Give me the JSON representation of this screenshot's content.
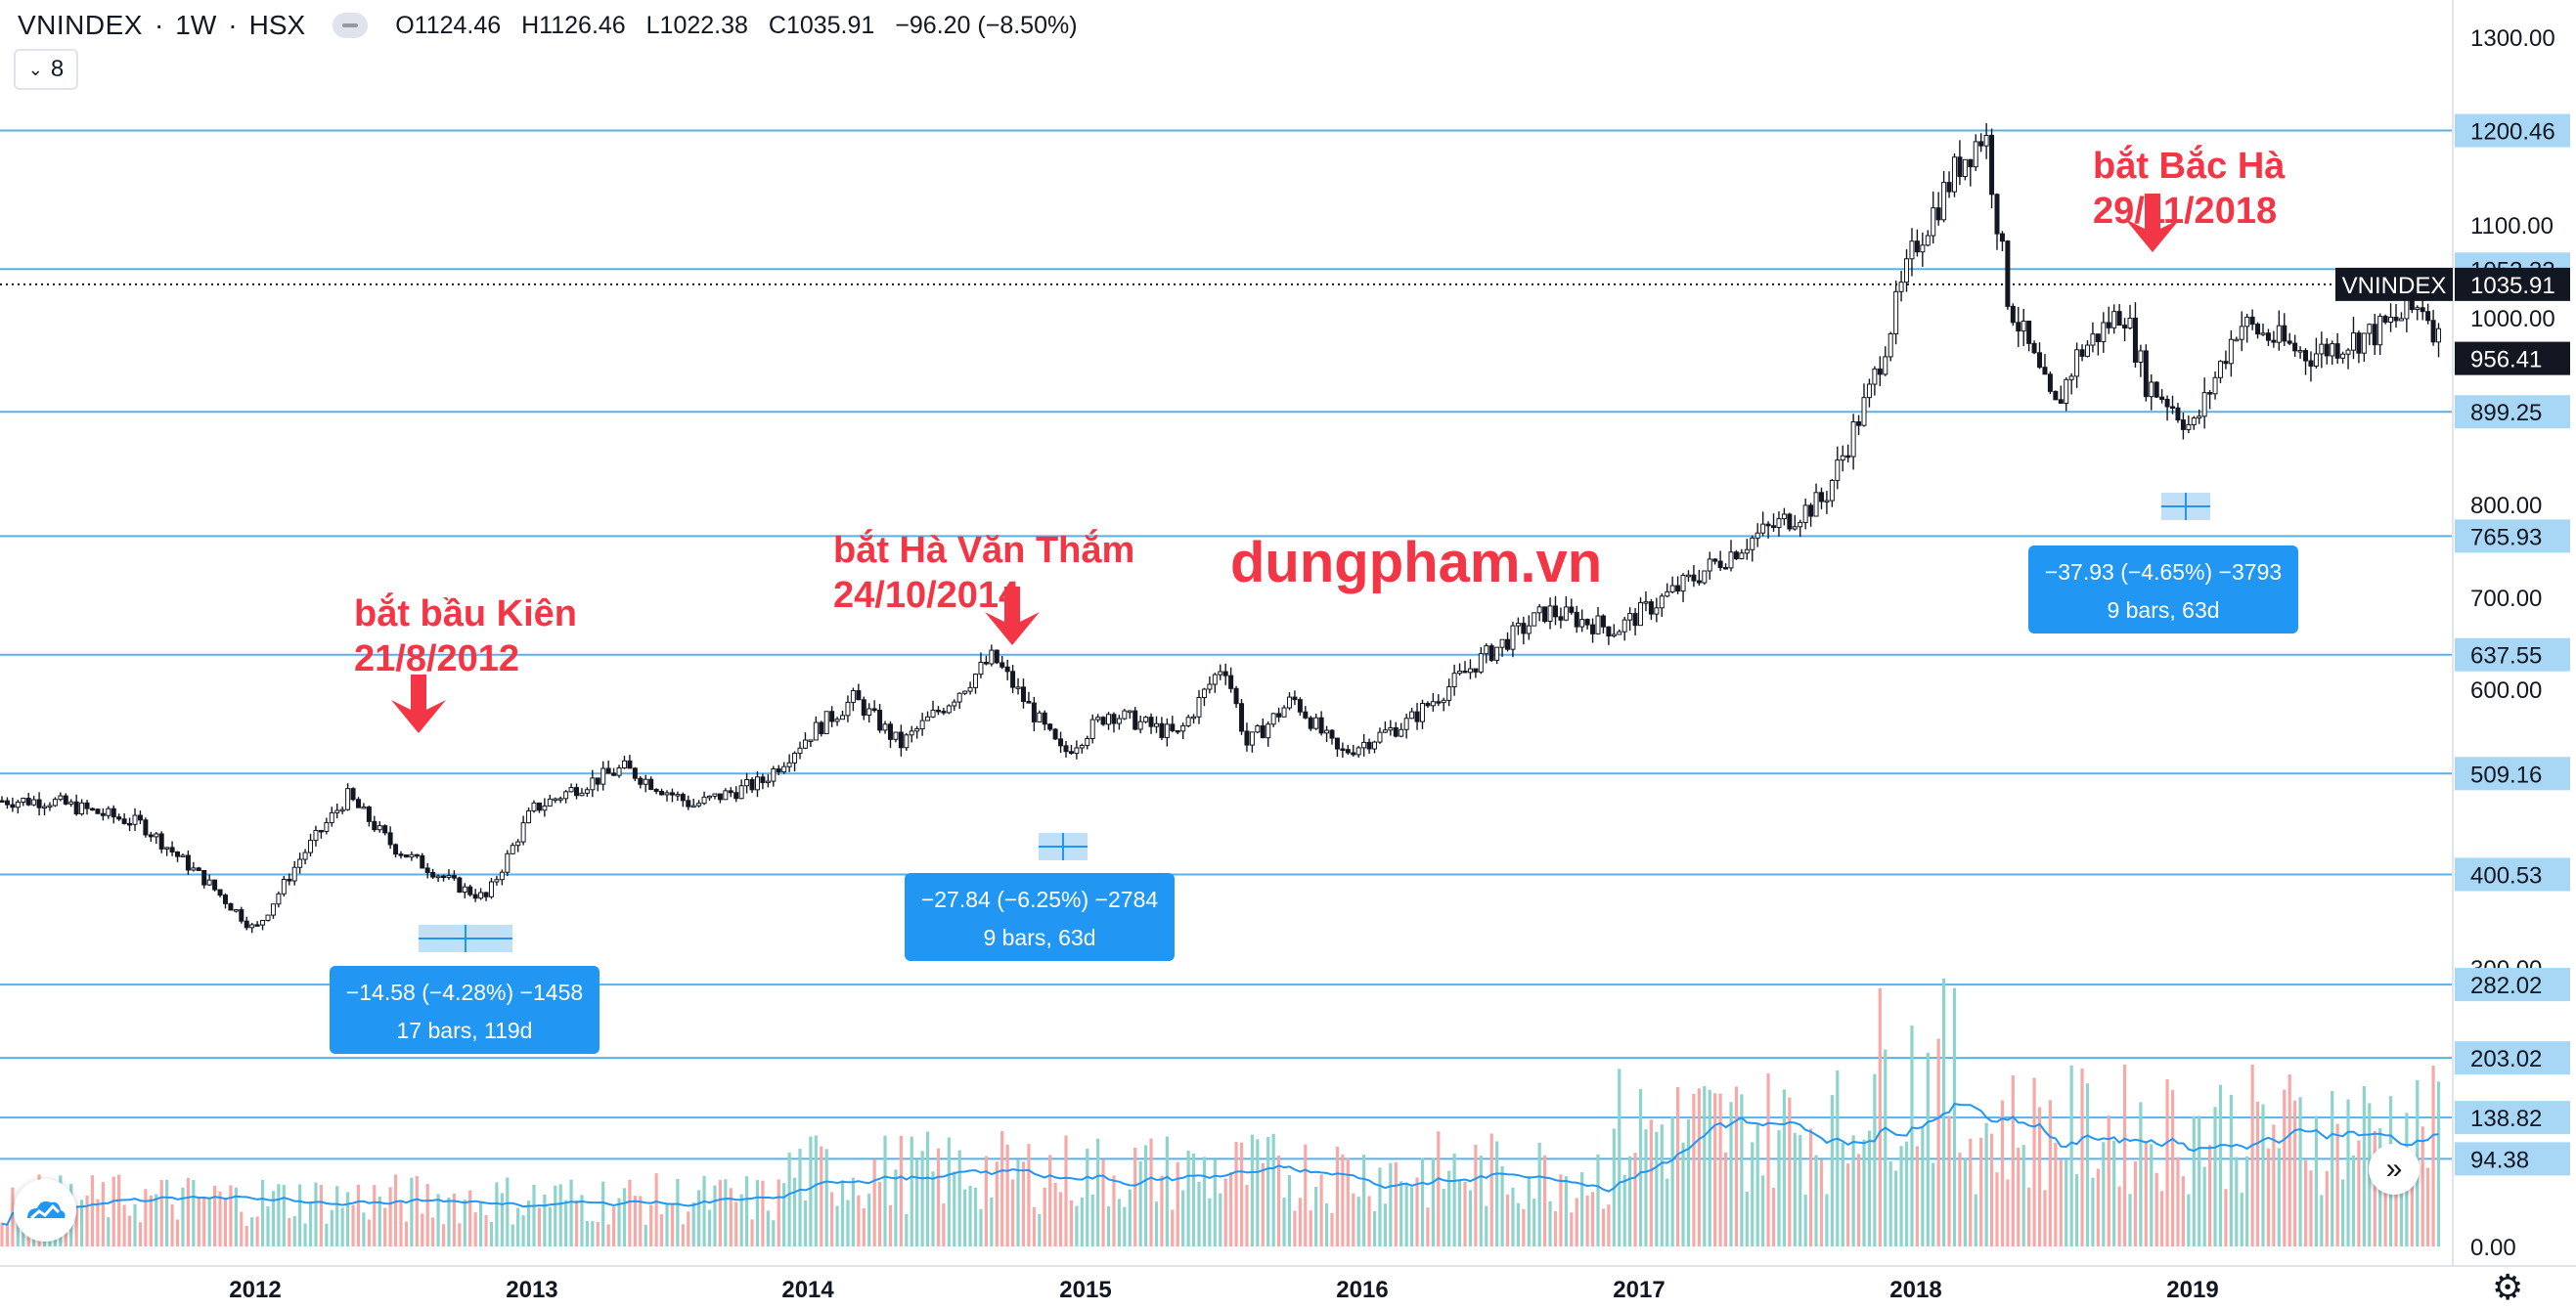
{
  "legend": {
    "symbol": "VNINDEX",
    "interval": "1W",
    "exchange": "HSX",
    "open": "O1124.46",
    "high": "H1126.46",
    "low": "L1022.38",
    "close": "C1035.91",
    "change": "−96.20 (−8.50%)"
  },
  "indicator_count": "8",
  "colors": {
    "up": "#26a69a",
    "down": "#ef5350",
    "hline": "#5ab1e8",
    "measure_box": "#2196f3",
    "annotation": "#f23645",
    "ma": "#2196f3",
    "vol_up": "#8fd3cd",
    "vol_down": "#f7a9a7"
  },
  "icons": {
    "scroll": "double-chevron-right-icon",
    "settings": "gear-icon",
    "logo": "tradingview-cloud-icon"
  },
  "chart_data": {
    "type": "candlestick",
    "symbol": "VNINDEX",
    "timeframe": "1W",
    "y_axis_ticks": [
      "1300.00",
      "1100.00",
      "1000.00",
      "800.00",
      "700.00",
      "600.00",
      "300.00",
      "0.00"
    ],
    "y_range": [
      0,
      1345
    ],
    "x_axis_ticks": [
      "2012",
      "2013",
      "2014",
      "2015",
      "2016",
      "2017",
      "2018",
      "2019"
    ],
    "last_price": "1035.91",
    "last_price_label": "VNINDEX",
    "second_price_label": "956.41",
    "horizontal_levels": [
      "1200.46",
      "1052.33",
      "899.25",
      "765.93",
      "637.55",
      "509.16",
      "400.53",
      "282.02",
      "203.02",
      "138.82",
      "94.38"
    ],
    "series_anchor_points": [
      {
        "x": "2011-04",
        "y": 480
      },
      {
        "x": "2011-08",
        "y": 455
      },
      {
        "x": "2011-11",
        "y": 390
      },
      {
        "x": "2012-01",
        "y": 340
      },
      {
        "x": "2012-03",
        "y": 420
      },
      {
        "x": "2012-05",
        "y": 485
      },
      {
        "x": "2012-07",
        "y": 430
      },
      {
        "x": "2012-08",
        "y": 415
      },
      {
        "x": "2012-10",
        "y": 385
      },
      {
        "x": "2012-11",
        "y": 375
      },
      {
        "x": "2013-01",
        "y": 470
      },
      {
        "x": "2013-03",
        "y": 495
      },
      {
        "x": "2013-05",
        "y": 515
      },
      {
        "x": "2013-08",
        "y": 475
      },
      {
        "x": "2013-11",
        "y": 500
      },
      {
        "x": "2014-01",
        "y": 550
      },
      {
        "x": "2014-03",
        "y": 590
      },
      {
        "x": "2014-05",
        "y": 540
      },
      {
        "x": "2014-07",
        "y": 585
      },
      {
        "x": "2014-09",
        "y": 635
      },
      {
        "x": "2014-10",
        "y": 600
      },
      {
        "x": "2014-12",
        "y": 530
      },
      {
        "x": "2015-02",
        "y": 575
      },
      {
        "x": "2015-05",
        "y": 550
      },
      {
        "x": "2015-07",
        "y": 630
      },
      {
        "x": "2015-08",
        "y": 540
      },
      {
        "x": "2015-10",
        "y": 590
      },
      {
        "x": "2015-12",
        "y": 530
      },
      {
        "x": "2016-03",
        "y": 565
      },
      {
        "x": "2016-06",
        "y": 630
      },
      {
        "x": "2016-09",
        "y": 685
      },
      {
        "x": "2016-12",
        "y": 665
      },
      {
        "x": "2017-03",
        "y": 715
      },
      {
        "x": "2017-06",
        "y": 765
      },
      {
        "x": "2017-09",
        "y": 805
      },
      {
        "x": "2017-11",
        "y": 920
      },
      {
        "x": "2018-01",
        "y": 1080
      },
      {
        "x": "2018-03",
        "y": 1170
      },
      {
        "x": "2018-04",
        "y": 1200
      },
      {
        "x": "2018-05",
        "y": 1020
      },
      {
        "x": "2018-07",
        "y": 900
      },
      {
        "x": "2018-08",
        "y": 960
      },
      {
        "x": "2018-10",
        "y": 1010
      },
      {
        "x": "2018-11",
        "y": 930
      },
      {
        "x": "2018-12",
        "y": 910
      },
      {
        "x": "2019-01",
        "y": 880
      },
      {
        "x": "2019-03",
        "y": 995
      },
      {
        "x": "2019-06",
        "y": 960
      },
      {
        "x": "2019-09",
        "y": 985
      },
      {
        "x": "2019-11",
        "y": 1015
      },
      {
        "x": "2019-12",
        "y": 960
      }
    ],
    "volume_scale_ticks": [
      "0.00"
    ],
    "annotations": [
      {
        "text": "bắt bầu Kiên",
        "date": "21/8/2012"
      },
      {
        "text": "bắt Hà Văn Thắm",
        "date": "24/10/2014"
      },
      {
        "text": "bắt Bắc Hà",
        "date": "29/11/2018"
      }
    ],
    "watermark": "dungpham.vn",
    "measurements": [
      {
        "line1": "−14.58 (−4.28%) −1458",
        "line2": "17 bars, 119d"
      },
      {
        "line1": "−27.84 (−6.25%) −2784",
        "line2": "9 bars, 63d"
      },
      {
        "line1": "−37.93 (−4.65%) −3793",
        "line2": "9 bars, 63d"
      }
    ]
  }
}
